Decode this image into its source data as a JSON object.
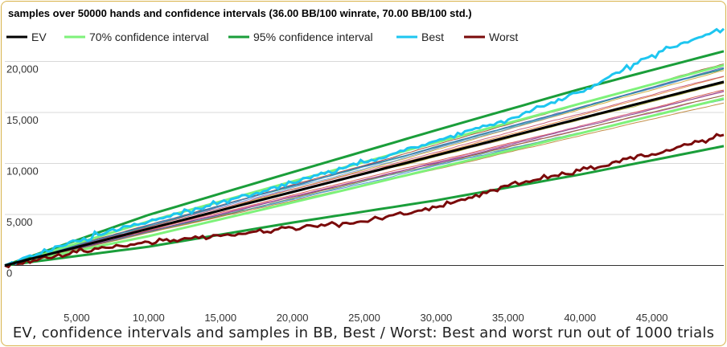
{
  "chart_data": {
    "type": "line",
    "title": "samples over 50000 hands and confidence intervals (36.00 BB/100 winrate, 70.00 BB/100 std.)",
    "caption": "EV, confidence intervals and samples in BB, Best / Worst: Best and worst run out of 1000 trials",
    "xlabel": "",
    "ylabel": "",
    "xlim": [
      0,
      50000
    ],
    "ylim": [
      -5000,
      23500
    ],
    "x_ticks": [
      "5,000",
      "10,000",
      "15,000",
      "20,000",
      "25,000",
      "30,000",
      "35,000",
      "40,000",
      "45,000"
    ],
    "x_tick_values": [
      5000,
      10000,
      15000,
      20000,
      25000,
      30000,
      35000,
      40000,
      45000
    ],
    "y_ticks": [
      "0",
      "5,000",
      "10,000",
      "15,000",
      "20,000"
    ],
    "y_tick_values": [
      0,
      5000,
      10000,
      15000,
      20000
    ],
    "grid": "horizontal",
    "legend_position": "top",
    "legend": [
      {
        "name": "EV",
        "color": "#000000"
      },
      {
        "name": "70% confidence interval",
        "color": "#7ef27a"
      },
      {
        "name": "95% confidence interval",
        "color": "#1a9e3a"
      },
      {
        "name": "Best",
        "color": "#1ec6f0"
      },
      {
        "name": "Worst",
        "color": "#7a0a0a"
      }
    ],
    "series": [
      {
        "name": "EV",
        "x": [
          0,
          10000,
          20000,
          30000,
          40000,
          50000
        ],
        "values": [
          0,
          3600,
          7200,
          10800,
          14400,
          18000
        ]
      },
      {
        "name": "70% confidence interval",
        "x": [
          0,
          10000,
          20000,
          30000,
          40000,
          50000
        ],
        "values": [
          0,
          4325,
          8227,
          12060,
          15856,
          19630
        ],
        "lower": [
          0,
          2875,
          6173,
          9540,
          12944,
          16370
        ]
      },
      {
        "name": "95% confidence interval",
        "x": [
          0,
          10000,
          20000,
          30000,
          40000,
          50000
        ],
        "values": [
          0,
          4960,
          9140,
          13260,
          17290,
          21000
        ],
        "lower": [
          0,
          1840,
          4200,
          6380,
          8910,
          11700
        ]
      },
      {
        "name": "Best",
        "x": [
          0,
          5000,
          10000,
          15000,
          20000,
          25000,
          30000,
          35000,
          40000,
          45000,
          50000
        ],
        "values": [
          0,
          2400,
          4300,
          6200,
          8100,
          10100,
          12200,
          14300,
          17000,
          20600,
          23200
        ]
      },
      {
        "name": "Worst",
        "x": [
          0,
          5000,
          10000,
          15000,
          20000,
          25000,
          30000,
          35000,
          40000,
          45000,
          50000
        ],
        "values": [
          0,
          1300,
          2300,
          2900,
          3700,
          4300,
          5700,
          7800,
          9300,
          10900,
          12800
        ]
      }
    ],
    "samples_colors": [
      "#e07b2a",
      "#b03aa8",
      "#3f7fd0",
      "#d3443a",
      "#2d9c8a",
      "#8a6d1d",
      "#6b4cc9",
      "#c9a227",
      "#1f6e2c",
      "#d06fb0",
      "#4aa0a0",
      "#9c3b1d",
      "#5a8ed8",
      "#a0a020",
      "#7a2f7a",
      "#2f8f5a",
      "#c04a6a",
      "#4d4d9a",
      "#b87d2a",
      "#308acb"
    ]
  }
}
